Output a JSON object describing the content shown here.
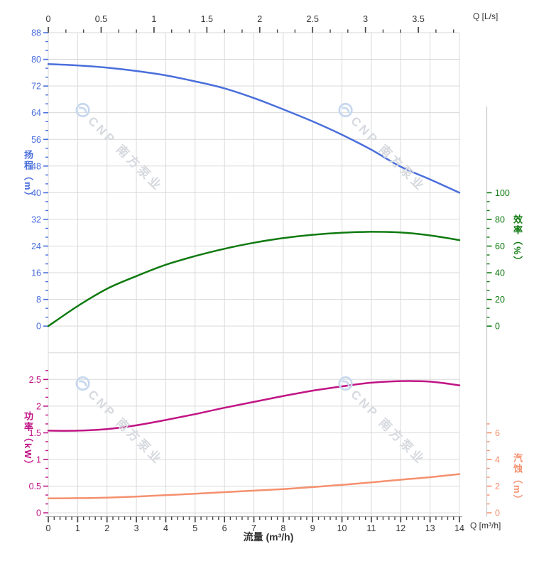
{
  "page": {
    "background": "#ffffff"
  },
  "watermark": {
    "text": "CNP 南方泵业",
    "logo": "cnp-circle-logo",
    "logo_color": "#c7d8ee",
    "text_color": "#d6d9de"
  },
  "axes": {
    "flow_top": {
      "label": "Q [L/s]",
      "unit": "L/s",
      "range": [
        0,
        3.889
      ],
      "major_ticks": [
        0,
        0.5,
        1,
        1.5,
        2,
        2.5,
        3,
        3.5
      ],
      "tick_labels": [
        "0",
        "0.5",
        "1",
        "1.5",
        "2",
        "2.5",
        "3",
        "3.5"
      ],
      "color": "#333333",
      "tick_color": "#444444"
    },
    "flow_bottom": {
      "label": "Q [m³/h]",
      "title": "流量 (m³/h)",
      "unit": "m³/h",
      "range": [
        0,
        14
      ],
      "major_ticks": [
        0,
        1,
        2,
        3,
        4,
        5,
        6,
        7,
        8,
        9,
        10,
        11,
        12,
        13,
        14
      ],
      "tick_labels": [
        "0",
        "1",
        "2",
        "3",
        "4",
        "5",
        "6",
        "7",
        "8",
        "9",
        "10",
        "11",
        "12",
        "13",
        "14"
      ],
      "color": "#333333",
      "tick_color": "#444444"
    },
    "head": {
      "title": "扬程（m）",
      "unit": "m",
      "range": [
        0,
        88
      ],
      "major_ticks": [
        0,
        8,
        16,
        24,
        32,
        40,
        48,
        56,
        64,
        72,
        80,
        88
      ],
      "tick_labels": [
        "0",
        "8",
        "16",
        "24",
        "32",
        "40",
        "48",
        "56",
        "64",
        "72",
        "80",
        "88"
      ],
      "color": "#4a6edb"
    },
    "efficiency": {
      "title": "效率（%）",
      "unit": "%",
      "range": [
        0,
        100
      ],
      "major_ticks": [
        0,
        20,
        40,
        60,
        80,
        100
      ],
      "tick_labels": [
        "0",
        "20",
        "40",
        "60",
        "80",
        "100"
      ],
      "color": "#0f7a10"
    },
    "power": {
      "title": "功率（kW）",
      "unit": "kW",
      "range": [
        0,
        2.5
      ],
      "major_ticks": [
        0,
        0.5,
        1,
        1.5,
        2,
        2.5
      ],
      "tick_labels": [
        "0",
        "0.5",
        "1",
        "1.5",
        "2",
        "2.5"
      ],
      "color": "#c01484"
    },
    "npsh": {
      "title": "汽蚀（m）",
      "unit": "m",
      "range": [
        0,
        6
      ],
      "major_ticks": [
        0,
        2,
        4,
        6
      ],
      "tick_labels": [
        "0",
        "2",
        "4",
        "6"
      ],
      "color": "#f5906e"
    }
  },
  "chart_data": {
    "type": "line",
    "xlabel": "流量 (m³/h)",
    "x_unit": "m³/h",
    "x": [
      0,
      1,
      2,
      3,
      4,
      5,
      6,
      7,
      8,
      9,
      10,
      11,
      12,
      13,
      14
    ],
    "grid": true,
    "series": [
      {
        "name": "扬程",
        "axis": "head",
        "unit": "m",
        "color": "#4a6edb",
        "values": [
          78.6,
          78.2,
          77.5,
          76.5,
          75.2,
          73.4,
          71.3,
          68.4,
          65.0,
          61.4,
          57.4,
          52.9,
          47.8,
          44.0,
          40.0
        ]
      },
      {
        "name": "效率",
        "axis": "efficiency",
        "unit": "%",
        "color": "#0f7a10",
        "values": [
          0,
          15,
          28,
          37.5,
          46,
          52.5,
          58,
          62.5,
          66,
          68.5,
          70,
          70.7,
          70.2,
          68,
          64.5
        ]
      },
      {
        "name": "功率",
        "axis": "power",
        "unit": "kW",
        "color": "#c01484",
        "values": [
          1.54,
          1.54,
          1.57,
          1.64,
          1.74,
          1.85,
          1.97,
          2.08,
          2.19,
          2.29,
          2.37,
          2.44,
          2.47,
          2.46,
          2.39
        ]
      },
      {
        "name": "汽蚀",
        "axis": "npsh",
        "unit": "m",
        "color": "#f5906e",
        "values": [
          1.08,
          1.1,
          1.14,
          1.22,
          1.32,
          1.43,
          1.55,
          1.66,
          1.78,
          1.93,
          2.1,
          2.28,
          2.48,
          2.67,
          2.9
        ]
      }
    ]
  }
}
